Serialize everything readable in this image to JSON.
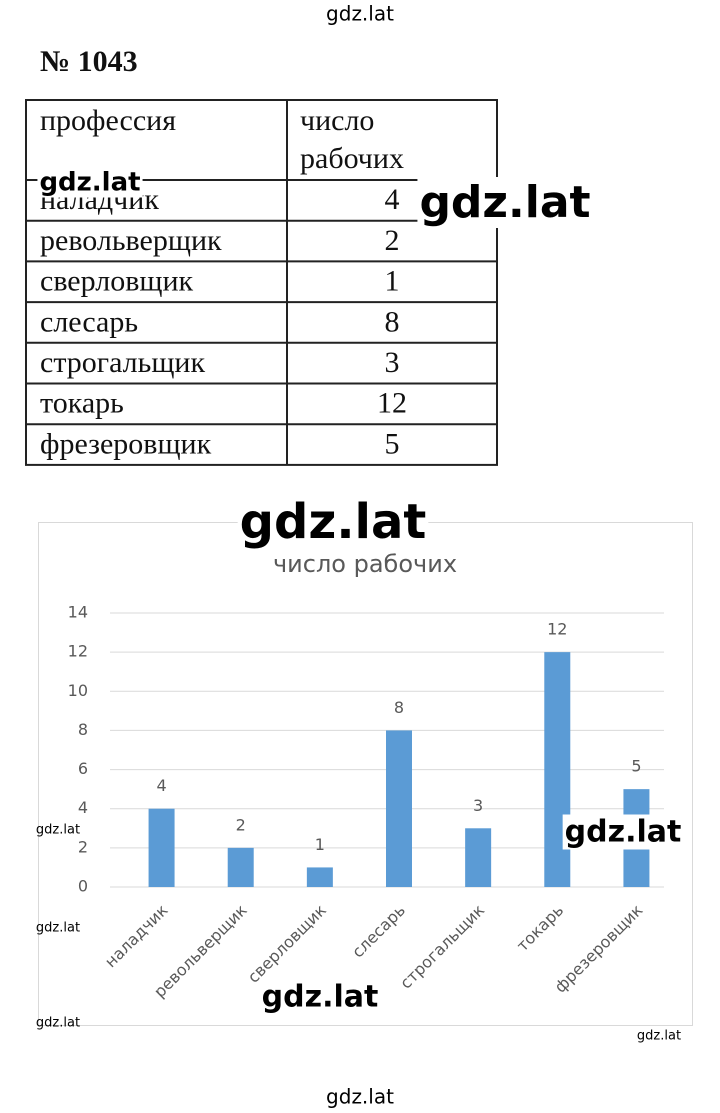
{
  "header": {
    "title": "№ 1043"
  },
  "table": {
    "columns": [
      "профессия",
      "число рабочих"
    ],
    "rows": [
      [
        "наладчик",
        4
      ],
      [
        "револьверщик",
        2
      ],
      [
        "сверловщик",
        1
      ],
      [
        "слесарь",
        8
      ],
      [
        "строгальщик",
        3
      ],
      [
        "токарь",
        12
      ],
      [
        "фрезеровщик",
        5
      ]
    ]
  },
  "chart_data": {
    "type": "bar",
    "title": "число рабочих",
    "categories": [
      "наладчик",
      "револьверщик",
      "сверловщик",
      "слесарь",
      "строгальщик",
      "токарь",
      "фрезеровщик"
    ],
    "values": [
      4,
      2,
      1,
      8,
      3,
      12,
      5
    ],
    "color": "#5b9bd5",
    "ylim": [
      0,
      14
    ],
    "yticks": [
      0,
      2,
      4,
      6,
      8,
      10,
      12,
      14
    ],
    "grid": true,
    "data_labels": true
  },
  "watermarks": [
    "gdz.lat",
    "gdz.lat",
    "gdz.lat",
    "gdz.lat",
    "gdz.lat",
    "gdz.lat",
    "gdz.lat",
    "gdz.lat",
    "gdz.lat",
    "gdz.lat",
    "gdz.lat"
  ]
}
